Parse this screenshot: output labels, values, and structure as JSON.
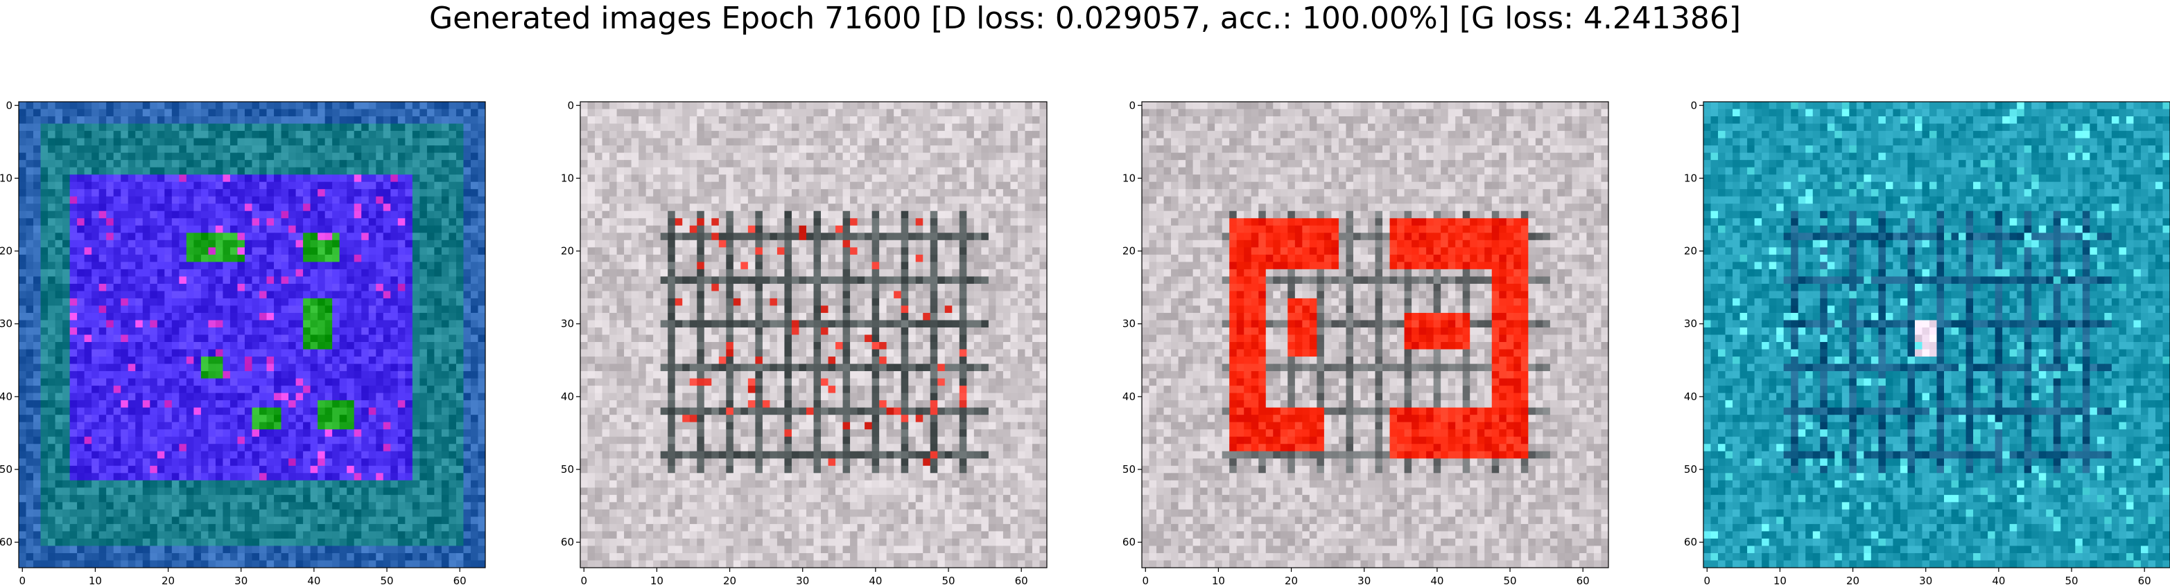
{
  "figure": {
    "suptitle": "Generated images Epoch 71600 [D loss: 0.029057, acc.: 100.00%] [G loss: 4.241386]"
  },
  "chart_data": [
    {
      "type": "heatmap",
      "title": "",
      "description_colors": {
        "base": "#1b7f8c",
        "dominant": "#4a2ff0",
        "accent": "#1faa1f"
      },
      "x": {
        "ticks": [
          0,
          10,
          20,
          30,
          40,
          50,
          60
        ],
        "range": [
          -0.5,
          63.5
        ]
      },
      "y": {
        "ticks": [
          0,
          10,
          20,
          30,
          40,
          50,
          60
        ],
        "range": [
          63.5,
          -0.5
        ]
      },
      "grid": false
    },
    {
      "type": "heatmap",
      "title": "",
      "description_colors": {
        "base": "#cfc8cc",
        "dominant": "#2e3a3a",
        "accent": "#e8352a"
      },
      "x": {
        "ticks": [
          0,
          10,
          20,
          30,
          40,
          50,
          60
        ],
        "range": [
          -0.5,
          63.5
        ]
      },
      "y": {
        "ticks": [
          0,
          10,
          20,
          30,
          40,
          50,
          60
        ],
        "range": [
          63.5,
          -0.5
        ]
      },
      "grid": false
    },
    {
      "type": "heatmap",
      "title": "",
      "description_colors": {
        "base": "#cbc4c8",
        "dominant": "#ff2a10",
        "accent": "#2e3a3a"
      },
      "x": {
        "ticks": [
          0,
          10,
          20,
          30,
          40,
          50,
          60
        ],
        "range": [
          -0.5,
          63.5
        ]
      },
      "y": {
        "ticks": [
          0,
          10,
          20,
          30,
          40,
          50,
          60
        ],
        "range": [
          63.5,
          -0.5
        ]
      },
      "grid": false
    },
    {
      "type": "heatmap",
      "title": "",
      "description_colors": {
        "base": "#1f9ab3",
        "dominant": "#0e4a7a",
        "accent": "#5ee8f0"
      },
      "x": {
        "ticks": [
          0,
          10,
          20,
          30,
          40,
          50,
          60
        ],
        "range": [
          -0.5,
          63.5
        ]
      },
      "y": {
        "ticks": [
          0,
          10,
          20,
          30,
          40,
          50,
          60
        ],
        "range": [
          63.5,
          -0.5
        ]
      },
      "grid": false
    }
  ]
}
